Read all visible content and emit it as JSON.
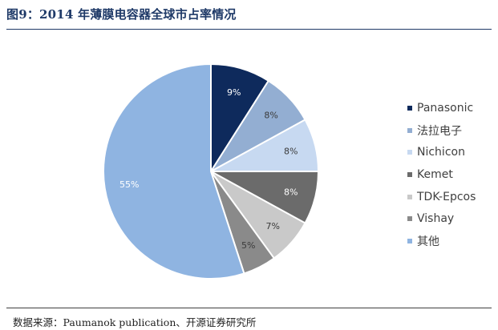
{
  "title": "图9：2014 年薄膜电容器全球市占率情况",
  "source": "数据来源：Paumanok publication、开源证券研究所",
  "chart_data": {
    "type": "pie",
    "start_angle_deg": 0,
    "direction": "clockwise",
    "legend_position": "right",
    "slices": [
      {
        "label": "Panasonic",
        "value": 9,
        "value_label": "9%",
        "color": "#0e2a5c",
        "text_color": "#ffffff"
      },
      {
        "label": "法拉电子",
        "value": 8,
        "value_label": "8%",
        "color": "#93aed2",
        "text_color": "#3a3a3a"
      },
      {
        "label": "Nichicon",
        "value": 8,
        "value_label": "8%",
        "color": "#c7d9f1",
        "text_color": "#3a3a3a"
      },
      {
        "label": "Kemet",
        "value": 8,
        "value_label": "8%",
        "color": "#6b6b6b",
        "text_color": "#ffffff"
      },
      {
        "label": "TDK-Epcos",
        "value": 7,
        "value_label": "7%",
        "color": "#c9c9c9",
        "text_color": "#3a3a3a"
      },
      {
        "label": "Vishay",
        "value": 5,
        "value_label": "5%",
        "color": "#8a8a8a",
        "text_color": "#3a3a3a"
      },
      {
        "label": "其他",
        "value": 55,
        "value_label": "55%",
        "color": "#8fb4e1",
        "text_color": "#ffffff"
      }
    ]
  }
}
